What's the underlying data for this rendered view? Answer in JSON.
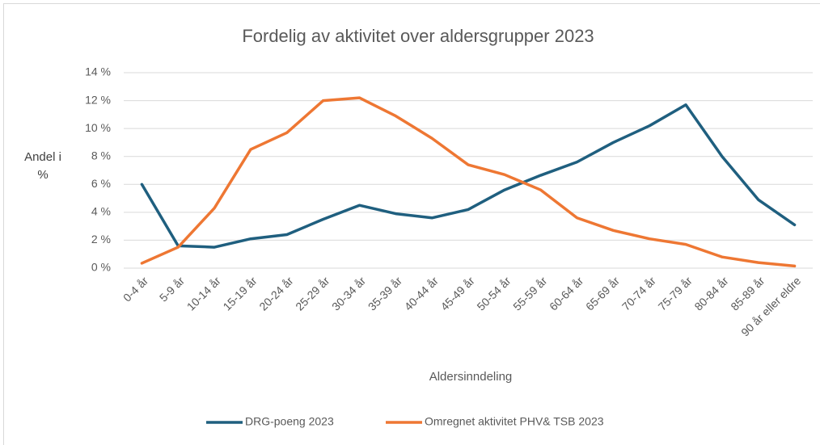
{
  "chart_data": {
    "type": "line",
    "title": "Fordelig av aktivitet over aldersgrupper 2023",
    "ylabel": "Andel i %",
    "xlabel": "Aldersinndeling",
    "categories": [
      "0-4 år",
      "5-9 år",
      "10-14 år",
      "15-19 år",
      "20-24 år",
      "25-29 år",
      "30-34 år",
      "35-39 år",
      "40-44 år",
      "45-49 år",
      "50-54 år",
      "55-59 år",
      "60-64 år",
      "65-69 år",
      "70-74 år",
      "75-79 år",
      "80-84 år",
      "85-89 år",
      "90 år eller eldre"
    ],
    "series": [
      {
        "name": "DRG-poeng 2023",
        "color": "#1f5f7f",
        "values": [
          6.0,
          1.6,
          1.5,
          2.1,
          2.4,
          3.5,
          4.5,
          3.9,
          3.6,
          4.2,
          5.6,
          6.65,
          7.6,
          9.0,
          10.2,
          11.7,
          8.0,
          4.9,
          3.1
        ]
      },
      {
        "name": "Omregnet aktivitet PHV& TSB 2023",
        "color": "#ee7733",
        "values": [
          0.35,
          1.5,
          4.3,
          8.5,
          9.7,
          12.0,
          12.2,
          10.9,
          9.3,
          7.4,
          6.7,
          5.6,
          3.6,
          2.7,
          2.1,
          1.7,
          0.8,
          0.4,
          0.15
        ]
      }
    ],
    "ylim": [
      0,
      14
    ],
    "yticks": [
      {
        "value": 0,
        "label": "0 %"
      },
      {
        "value": 2,
        "label": "2 %"
      },
      {
        "value": 4,
        "label": "4 %"
      },
      {
        "value": 6,
        "label": "6 %"
      },
      {
        "value": 8,
        "label": "8 %"
      },
      {
        "value": 10,
        "label": "10 %"
      },
      {
        "value": 12,
        "label": "12 %"
      },
      {
        "value": 14,
        "label": "14 %"
      }
    ],
    "grid": true,
    "legend": "bottom"
  }
}
